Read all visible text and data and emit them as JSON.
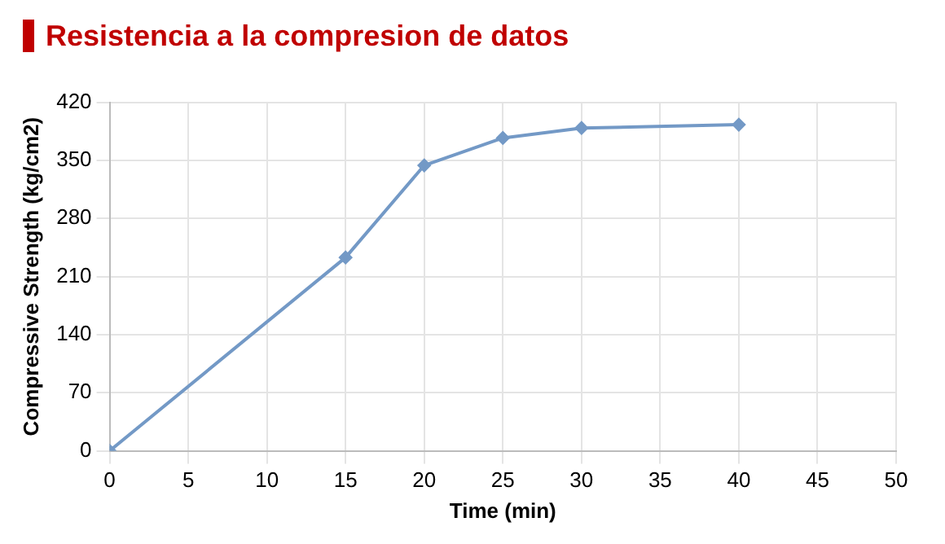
{
  "chart_data": {
    "type": "line",
    "title": "Resistencia a la compresion de datos",
    "xlabel": "Time (min)",
    "ylabel": "Compressive Strength (kg/cm2)",
    "x": [
      0,
      15,
      20,
      25,
      30,
      40
    ],
    "series": [
      {
        "color": "#7399c6",
        "values": [
          0,
          233,
          344,
          377,
          389,
          393
        ]
      }
    ],
    "xlim": [
      0,
      50
    ],
    "xticks": [
      0,
      5,
      10,
      15,
      20,
      25,
      30,
      35,
      40,
      45,
      50
    ],
    "ylim": [
      0,
      420
    ],
    "yticks": [
      0,
      70,
      140,
      210,
      280,
      350,
      420
    ],
    "grid": true,
    "legend": false,
    "marker": "diamond",
    "line_style": "solid"
  }
}
